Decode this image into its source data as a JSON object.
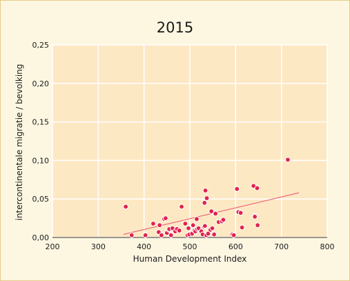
{
  "chart_data": {
    "type": "scatter",
    "title": "2015",
    "xlabel": "Human Development Index",
    "ylabel": "intercontinentale migratie / bevolking",
    "xlim": [
      200,
      800
    ],
    "ylim": [
      0,
      0.25
    ],
    "x_ticks": [
      "200",
      "300",
      "400",
      "500",
      "600",
      "700",
      "800"
    ],
    "y_ticks": [
      "0,00",
      "0,05",
      "0,10",
      "0,15",
      "0,20",
      "0,25"
    ],
    "grid": true,
    "colors": {
      "background": "#fde8c4",
      "grid": "#ffffff",
      "point": "#e0234e",
      "trendline": "#e8506a"
    },
    "trendline": {
      "x": [
        355,
        738
      ],
      "y": [
        0.004,
        0.058
      ]
    },
    "points": [
      [
        360,
        0.04
      ],
      [
        373,
        0.003
      ],
      [
        403,
        0.003
      ],
      [
        420,
        0.018
      ],
      [
        432,
        0.007
      ],
      [
        434,
        0.016
      ],
      [
        438,
        0.003
      ],
      [
        444,
        0.024
      ],
      [
        447,
        0.025
      ],
      [
        450,
        0.006
      ],
      [
        454,
        0.01
      ],
      [
        455,
        0.011
      ],
      [
        459,
        0.003
      ],
      [
        462,
        0.012
      ],
      [
        468,
        0.008
      ],
      [
        472,
        0.011
      ],
      [
        477,
        0.009
      ],
      [
        482,
        0.04
      ],
      [
        490,
        0.018
      ],
      [
        495,
        0.003
      ],
      [
        497,
        0.012
      ],
      [
        499,
        0.004
      ],
      [
        505,
        0.005
      ],
      [
        507,
        0.016
      ],
      [
        510,
        0.009
      ],
      [
        512,
        0.008
      ],
      [
        515,
        0.024
      ],
      [
        516,
        0.011
      ],
      [
        519,
        0.012
      ],
      [
        525,
        0.008
      ],
      [
        528,
        0.004
      ],
      [
        531,
        0.014
      ],
      [
        532,
        0.045
      ],
      [
        533,
        0.015
      ],
      [
        534,
        0.061
      ],
      [
        536,
        0.003
      ],
      [
        537,
        0.051
      ],
      [
        540,
        0.005
      ],
      [
        545,
        0.01
      ],
      [
        547,
        0.034
      ],
      [
        549,
        0.012
      ],
      [
        553,
        0.004
      ],
      [
        556,
        0.031
      ],
      [
        563,
        0.02
      ],
      [
        570,
        0.021
      ],
      [
        573,
        0.023
      ],
      [
        593,
        0.004
      ],
      [
        596,
        0.003
      ],
      [
        603,
        0.063
      ],
      [
        606,
        0.033
      ],
      [
        611,
        0.032
      ],
      [
        614,
        0.013
      ],
      [
        639,
        0.067
      ],
      [
        641,
        0.028
      ],
      [
        642,
        0.027
      ],
      [
        647,
        0.064
      ],
      [
        648,
        0.016
      ],
      [
        714,
        0.101
      ]
    ]
  }
}
